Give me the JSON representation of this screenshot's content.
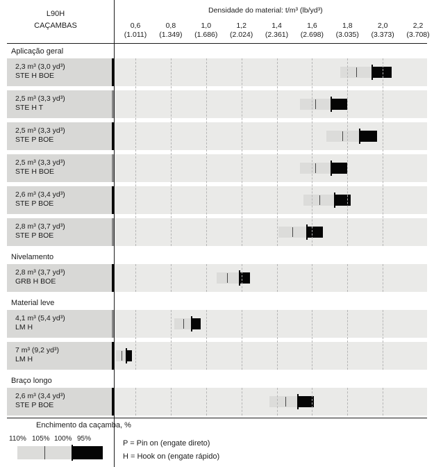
{
  "header": {
    "model": "L90H",
    "subtitle": "CAÇAMBAS",
    "axis_title": "Densidade do material: t/m³ (lb/yd³)"
  },
  "chart_data": {
    "type": "bar",
    "title": "",
    "xlabel": "Densidade do material: t/m³ (lb/yd³)",
    "xlim": [
      0.4,
      2.2
    ],
    "ticks": [
      {
        "metric": "0,6",
        "imperial": "(1.011)",
        "value": 0.6
      },
      {
        "metric": "0,8",
        "imperial": "(1.349)",
        "value": 0.8
      },
      {
        "metric": "1,0",
        "imperial": "(1.686)",
        "value": 1.0
      },
      {
        "metric": "1,2",
        "imperial": "(2.024)",
        "value": 1.2
      },
      {
        "metric": "1,4",
        "imperial": "(2.361)",
        "value": 1.4
      },
      {
        "metric": "1,6",
        "imperial": "(2.698)",
        "value": 1.6
      },
      {
        "metric": "1,8",
        "imperial": "(3.035)",
        "value": 1.8
      },
      {
        "metric": "2,0",
        "imperial": "(3.373)",
        "value": 2.0
      },
      {
        "metric": "2,2",
        "imperial": "(3.708)",
        "value": 2.2
      }
    ],
    "fill_factors": [
      "110%",
      "105%",
      "100%",
      "95%"
    ],
    "sections": [
      {
        "name": "Aplicação geral",
        "rows": [
          {
            "line1": "2,3 m³ (3,0 yd³)",
            "line2": "STE H BOE",
            "edge": "#0a0a0a",
            "d110": 1.76,
            "d105": 1.85,
            "d100": 1.94,
            "d95": 2.05
          },
          {
            "line1": "2,5 m³ (3,3 yd³)",
            "line2": "STE H T",
            "edge": "#8a8a8a",
            "d110": 1.53,
            "d105": 1.62,
            "d100": 1.71,
            "d95": 1.8
          },
          {
            "line1": "2,5 m³ (3,3 yd³)",
            "line2": "STE P BOE",
            "edge": "#0a0a0a",
            "d110": 1.68,
            "d105": 1.77,
            "d100": 1.87,
            "d95": 1.97
          },
          {
            "line1": "2,5 m³ (3,3 yd³)",
            "line2": "STE H BOE",
            "edge": "#8a8a8a",
            "d110": 1.53,
            "d105": 1.62,
            "d100": 1.71,
            "d95": 1.8
          },
          {
            "line1": "2,6 m³ (3,4 yd³)",
            "line2": "STE P BOE",
            "edge": "#0a0a0a",
            "d110": 1.55,
            "d105": 1.64,
            "d100": 1.73,
            "d95": 1.82
          },
          {
            "line1": "2,8 m³ (3,7 yd³)",
            "line2": "STE P BOE",
            "edge": "#8a8a8a",
            "d110": 1.41,
            "d105": 1.49,
            "d100": 1.57,
            "d95": 1.66
          }
        ]
      },
      {
        "name": "Nivelamento",
        "rows": [
          {
            "line1": "2,8 m³ (3,7 yd³)",
            "line2": "GRB H BOE",
            "edge": "#0a0a0a",
            "d110": 1.06,
            "d105": 1.12,
            "d100": 1.19,
            "d95": 1.25
          }
        ]
      },
      {
        "name": "Material leve",
        "rows": [
          {
            "line1": "4,1 m³ (5,4 yd³)",
            "line2": "LM H",
            "edge": "#8a8a8a",
            "d110": 0.82,
            "d105": 0.87,
            "d100": 0.92,
            "d95": 0.97
          },
          {
            "line1": "7 m³ (9,2 yd³)",
            "line2": "LM H",
            "edge": "#0a0a0a",
            "d110": 0.49,
            "d105": 0.52,
            "d100": 0.55,
            "d95": 0.58
          }
        ]
      },
      {
        "name": "Braço longo",
        "rows": [
          {
            "line1": "2,6 m³ (3,4 yd³)",
            "line2": "STE P BOE",
            "edge": "#0a0a0a",
            "d110": 1.36,
            "d105": 1.45,
            "d100": 1.52,
            "d95": 1.61
          }
        ]
      }
    ]
  },
  "legend": {
    "title": "Enchimento da caçamba, %",
    "pct_110": "110%",
    "pct_105": "105%",
    "pct_100": "100%",
    "pct_95": "95%",
    "note_p": "P = Pin on (engate direto)",
    "note_h": "H = Hook on (engate rápido)"
  },
  "colors": {
    "row_bg": "#eaeae8",
    "label_bg": "#d8d8d6",
    "bar_light": "#dcdcda",
    "bar_dark": "#050505"
  }
}
